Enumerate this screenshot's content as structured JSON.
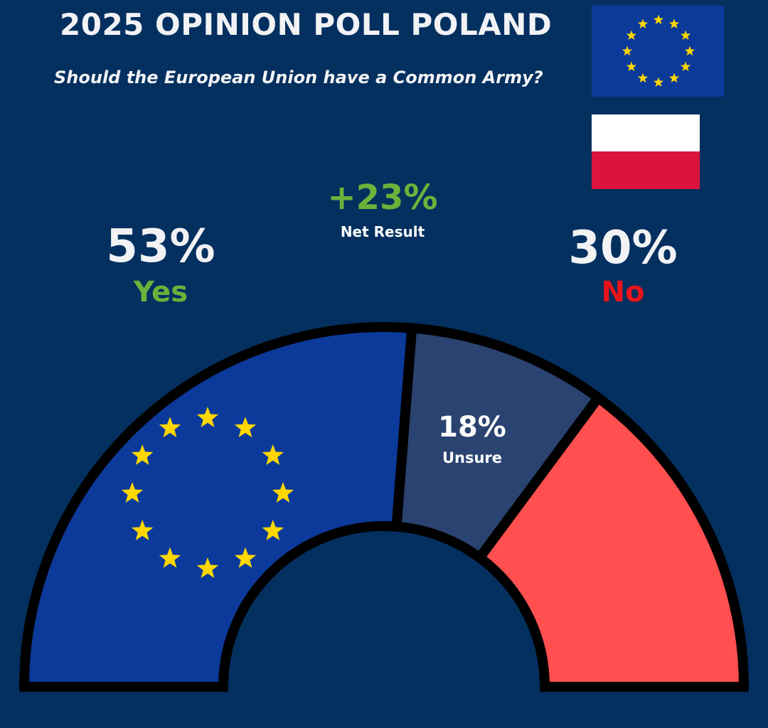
{
  "header": {
    "title": "2025 OPINION POLL POLAND",
    "question": "Should the European Union have a Common Army?"
  },
  "net": {
    "value": "+23%",
    "label": "Net Result"
  },
  "yes": {
    "pct": "53%",
    "label": "Yes"
  },
  "no": {
    "pct": "30%",
    "label": "No"
  },
  "unsure": {
    "pct": "18%",
    "label": "Unsure"
  },
  "colors": {
    "background": "#03305f",
    "yes": "#0c3a9b",
    "unsure": "#2a4370",
    "no": "#ff4f4f",
    "stars": "#ffd700",
    "positive": "#6ab33a",
    "negative": "#e8141c"
  },
  "icons": [
    "eu-flag-icon",
    "poland-flag-icon"
  ],
  "chart_data": {
    "type": "pie",
    "categories": [
      "Yes",
      "Unsure",
      "No"
    ],
    "values": [
      53,
      18,
      30
    ],
    "title": "2025 OPINION POLL POLAND"
  }
}
